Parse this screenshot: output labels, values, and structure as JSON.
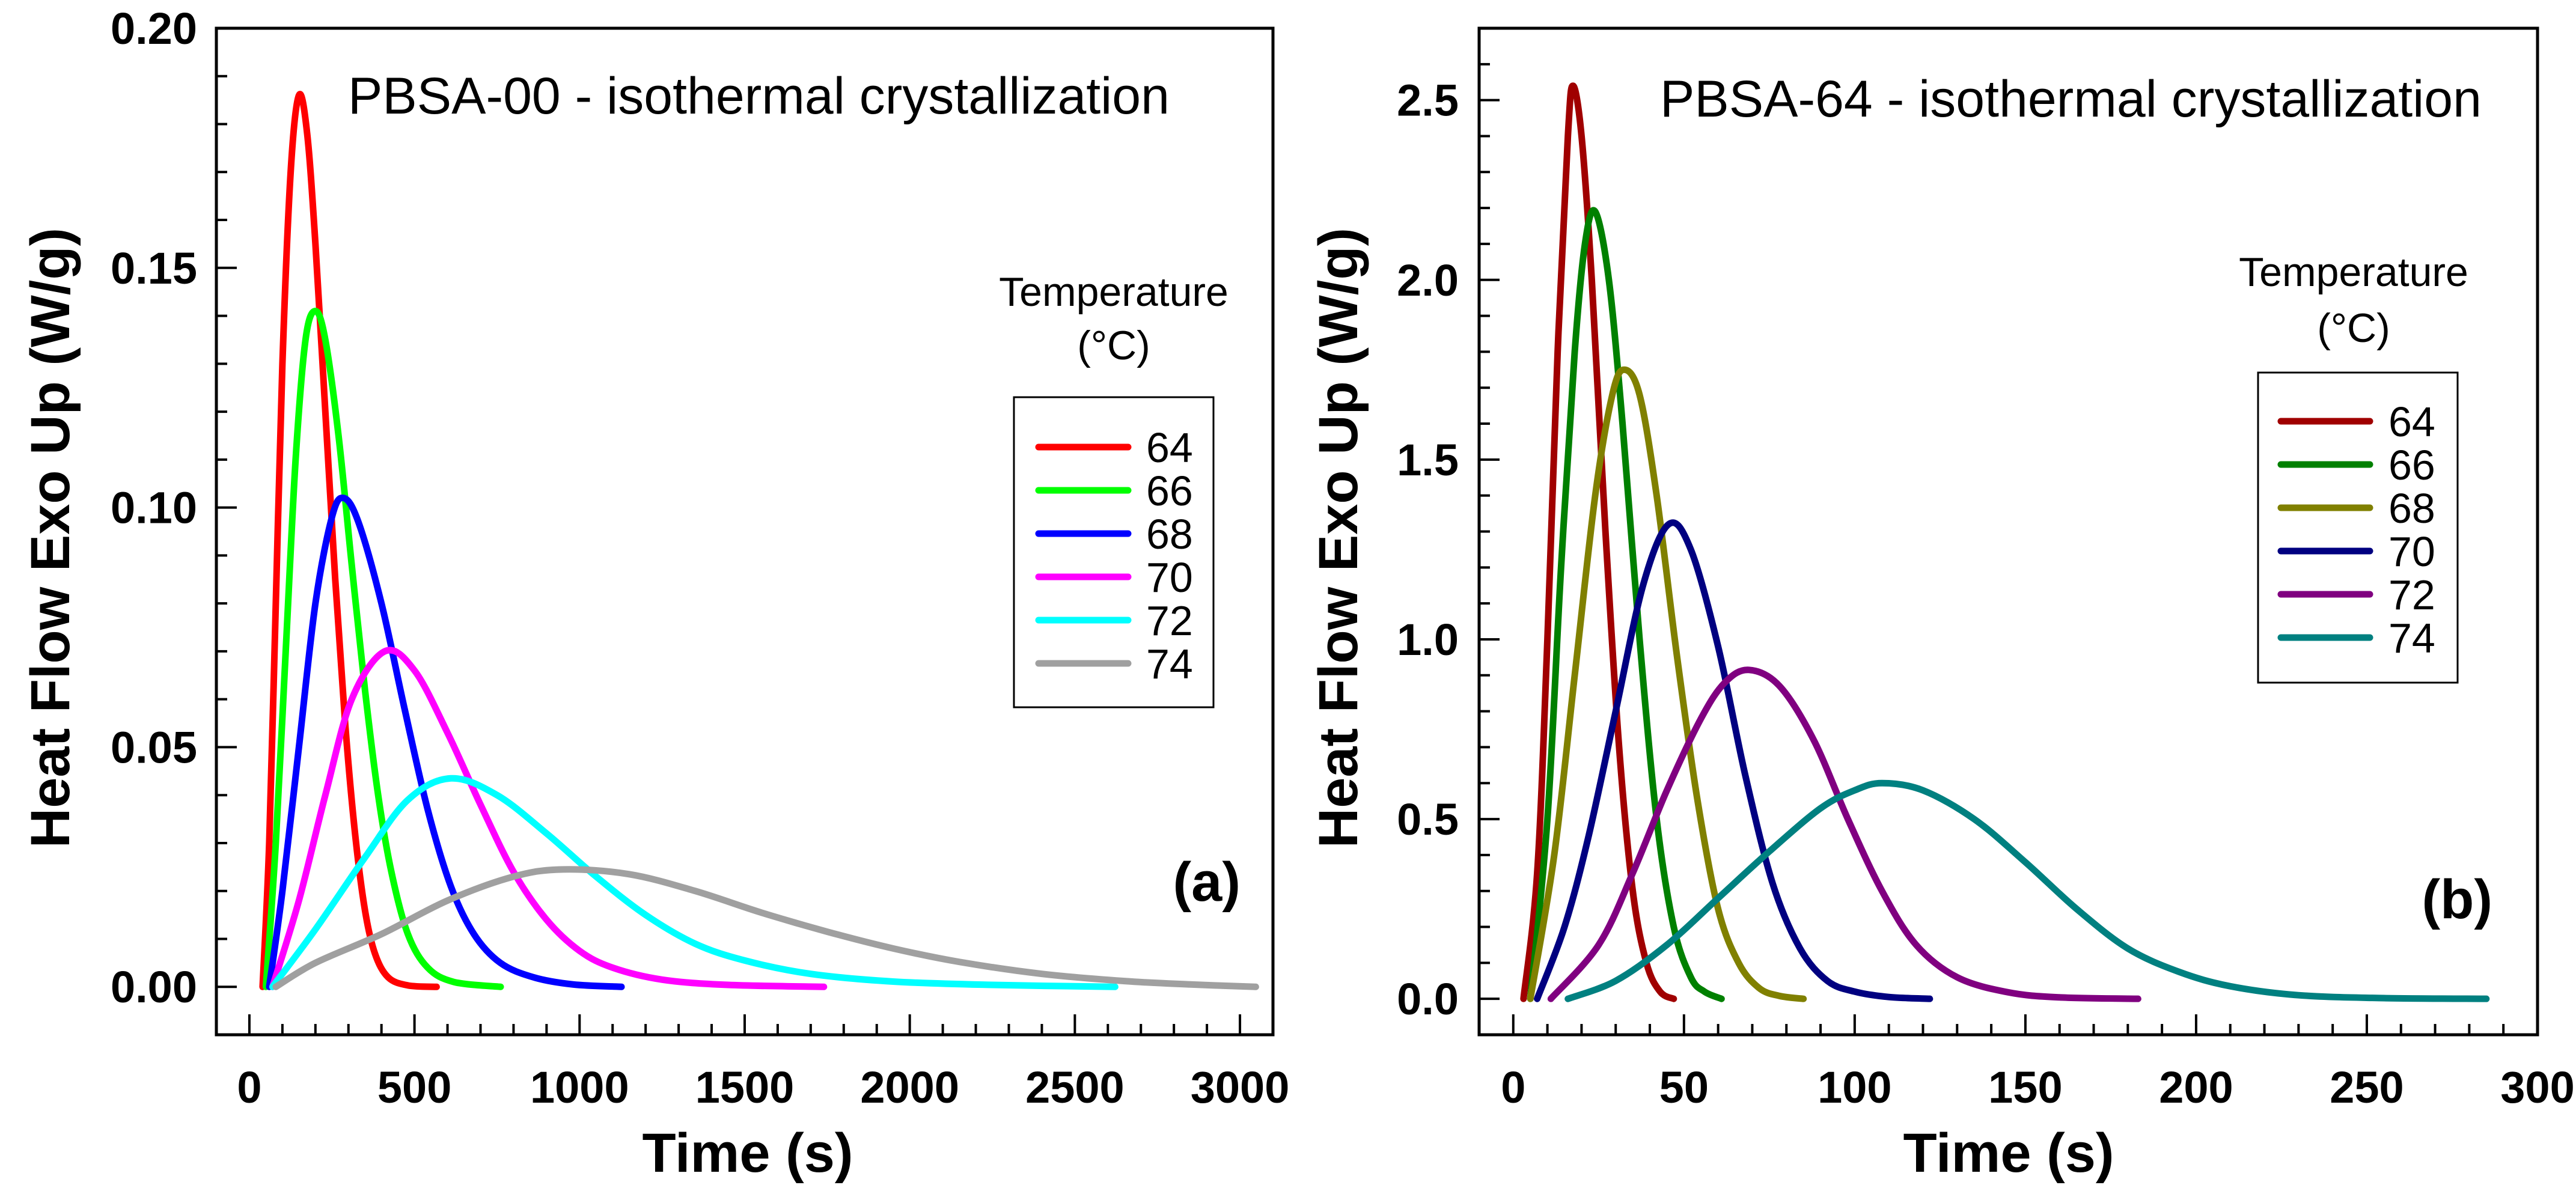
{
  "chart_data": [
    {
      "type": "line",
      "panel_label": "(a)",
      "title": "PBSA-00 - isothermal crystallization",
      "xlabel": "Time (s)",
      "ylabel": "Heat Flow Exo Up (W/g)",
      "xlim": [
        -100,
        3100
      ],
      "ylim": [
        -0.01,
        0.2
      ],
      "xticks": [
        0,
        500,
        1000,
        1500,
        2000,
        2500,
        3000
      ],
      "xtick_labels": [
        "0",
        "500",
        "1000",
        "1500",
        "2000",
        "2500",
        "3000"
      ],
      "x_minor_step": 100,
      "yticks": [
        0,
        0.05,
        0.1,
        0.15,
        0.2
      ],
      "ytick_labels": [
        "0.00",
        "0.05",
        "0.10",
        "0.15",
        "0.20"
      ],
      "y_minor_step": 0.01,
      "grid": false,
      "legend": {
        "title_line1": "Temperature",
        "title_line2": "(°C)",
        "placement": "right"
      },
      "series": [
        {
          "name": "64",
          "color": "#ff0000",
          "points": [
            [
              40,
              0
            ],
            [
              60,
              0.03
            ],
            [
              80,
              0.08
            ],
            [
              100,
              0.13
            ],
            [
              125,
              0.17
            ],
            [
              150,
              0.186
            ],
            [
              175,
              0.178
            ],
            [
              200,
              0.155
            ],
            [
              230,
              0.12
            ],
            [
              260,
              0.085
            ],
            [
              290,
              0.055
            ],
            [
              320,
              0.032
            ],
            [
              350,
              0.016
            ],
            [
              380,
              0.007
            ],
            [
              420,
              0.002
            ],
            [
              480,
              0.0003
            ],
            [
              567,
              0
            ]
          ]
        },
        {
          "name": "66",
          "color": "#00ff00",
          "points": [
            [
              50,
              0
            ],
            [
              80,
              0.03
            ],
            [
              110,
              0.07
            ],
            [
              140,
              0.11
            ],
            [
              170,
              0.135
            ],
            [
              200,
              0.141
            ],
            [
              230,
              0.135
            ],
            [
              270,
              0.115
            ],
            [
              310,
              0.088
            ],
            [
              350,
              0.062
            ],
            [
              390,
              0.04
            ],
            [
              430,
              0.024
            ],
            [
              480,
              0.011
            ],
            [
              540,
              0.004
            ],
            [
              620,
              0.001
            ],
            [
              761,
              0
            ]
          ]
        },
        {
          "name": "68",
          "color": "#0000ff",
          "points": [
            [
              60,
              0
            ],
            [
              100,
              0.02
            ],
            [
              150,
              0.05
            ],
            [
              200,
              0.08
            ],
            [
              250,
              0.098
            ],
            [
              285,
              0.102
            ],
            [
              330,
              0.097
            ],
            [
              400,
              0.08
            ],
            [
              470,
              0.058
            ],
            [
              540,
              0.037
            ],
            [
              610,
              0.021
            ],
            [
              680,
              0.011
            ],
            [
              760,
              0.005
            ],
            [
              860,
              0.002
            ],
            [
              980,
              0.0005
            ],
            [
              1127,
              0
            ]
          ]
        },
        {
          "name": "70",
          "color": "#ff00ff",
          "points": [
            [
              70,
              0
            ],
            [
              150,
              0.018
            ],
            [
              230,
              0.04
            ],
            [
              310,
              0.06
            ],
            [
              410,
              0.07
            ],
            [
              500,
              0.066
            ],
            [
              600,
              0.053
            ],
            [
              700,
              0.038
            ],
            [
              800,
              0.024
            ],
            [
              900,
              0.014
            ],
            [
              1000,
              0.0075
            ],
            [
              1100,
              0.004
            ],
            [
              1250,
              0.0015
            ],
            [
              1450,
              0.0004
            ],
            [
              1740,
              0
            ]
          ]
        },
        {
          "name": "72",
          "color": "#00ffff",
          "points": [
            [
              70,
              0
            ],
            [
              200,
              0.012
            ],
            [
              350,
              0.027
            ],
            [
              480,
              0.039
            ],
            [
              610,
              0.0435
            ],
            [
              750,
              0.04
            ],
            [
              900,
              0.032
            ],
            [
              1050,
              0.023
            ],
            [
              1200,
              0.015
            ],
            [
              1350,
              0.009
            ],
            [
              1500,
              0.0055
            ],
            [
              1700,
              0.0027
            ],
            [
              1950,
              0.0011
            ],
            [
              2250,
              0.0004
            ],
            [
              2622,
              0
            ]
          ]
        },
        {
          "name": "74",
          "color": "#a0a0a0",
          "points": [
            [
              80,
              0
            ],
            [
              200,
              0.005
            ],
            [
              400,
              0.011
            ],
            [
              600,
              0.018
            ],
            [
              800,
              0.023
            ],
            [
              950,
              0.0245
            ],
            [
              1150,
              0.0235
            ],
            [
              1350,
              0.02
            ],
            [
              1550,
              0.0155
            ],
            [
              1750,
              0.0115
            ],
            [
              1950,
              0.008
            ],
            [
              2150,
              0.0052
            ],
            [
              2400,
              0.0027
            ],
            [
              2650,
              0.0012
            ],
            [
              2850,
              0.0005
            ],
            [
              3048,
              0
            ]
          ]
        }
      ]
    },
    {
      "type": "line",
      "panel_label": "(b)",
      "title": "PBSA-64 - isothermal crystallization",
      "xlabel": "Time (s)",
      "ylabel": "Heat Flow Exo Up (W/g)",
      "xlim": [
        -10,
        300
      ],
      "ylim": [
        -0.1,
        2.7
      ],
      "xticks": [
        0,
        50,
        100,
        150,
        200,
        250,
        300
      ],
      "xtick_labels": [
        "0",
        "50",
        "100",
        "150",
        "200",
        "250",
        "300"
      ],
      "x_minor_step": 10,
      "yticks": [
        0,
        0.5,
        1.0,
        1.5,
        2.0,
        2.5
      ],
      "ytick_labels": [
        "0.0",
        "0.5",
        "1.0",
        "1.5",
        "2.0",
        "2.5"
      ],
      "y_minor_step": 0.1,
      "grid": false,
      "legend": {
        "title_line1": "Temperature",
        "title_line2": "(°C)",
        "placement": "right"
      },
      "series": [
        {
          "name": "64",
          "color": "#a00000",
          "points": [
            [
              3,
              0
            ],
            [
              7,
              0.35
            ],
            [
              10,
              1.0
            ],
            [
              13,
              1.8
            ],
            [
              16,
              2.4
            ],
            [
              17.5,
              2.54
            ],
            [
              20,
              2.4
            ],
            [
              23,
              2.0
            ],
            [
              27,
              1.3
            ],
            [
              31,
              0.7
            ],
            [
              35,
              0.3
            ],
            [
              39,
              0.1
            ],
            [
              43,
              0.02
            ],
            [
              47,
              0
            ]
          ]
        },
        {
          "name": "66",
          "color": "#008000",
          "points": [
            [
              5,
              0
            ],
            [
              10,
              0.5
            ],
            [
              14,
              1.2
            ],
            [
              18,
              1.8
            ],
            [
              21,
              2.1
            ],
            [
              24,
              2.19
            ],
            [
              28,
              2.0
            ],
            [
              32,
              1.6
            ],
            [
              37,
              1.0
            ],
            [
              42,
              0.5
            ],
            [
              47,
              0.2
            ],
            [
              52,
              0.06
            ],
            [
              56,
              0.02
            ],
            [
              61,
              0
            ]
          ]
        },
        {
          "name": "68",
          "color": "#808000",
          "points": [
            [
              5,
              0
            ],
            [
              12,
              0.4
            ],
            [
              18,
              0.9
            ],
            [
              24,
              1.4
            ],
            [
              29,
              1.68
            ],
            [
              32.5,
              1.75
            ],
            [
              37,
              1.68
            ],
            [
              42,
              1.4
            ],
            [
              48,
              0.95
            ],
            [
              54,
              0.55
            ],
            [
              60,
              0.25
            ],
            [
              66,
              0.1
            ],
            [
              72,
              0.03
            ],
            [
              78,
              0.008
            ],
            [
              85,
              0
            ]
          ]
        },
        {
          "name": "70",
          "color": "#000080",
          "points": [
            [
              7,
              0
            ],
            [
              15,
              0.2
            ],
            [
              22,
              0.45
            ],
            [
              30,
              0.8
            ],
            [
              38,
              1.15
            ],
            [
              45.5,
              1.32
            ],
            [
              52,
              1.25
            ],
            [
              60,
              0.98
            ],
            [
              68,
              0.62
            ],
            [
              76,
              0.32
            ],
            [
              84,
              0.14
            ],
            [
              92,
              0.05
            ],
            [
              100,
              0.02
            ],
            [
              110,
              0.005
            ],
            [
              122,
              0
            ]
          ]
        },
        {
          "name": "72",
          "color": "#800080",
          "points": [
            [
              11,
              0
            ],
            [
              25,
              0.15
            ],
            [
              35,
              0.35
            ],
            [
              45,
              0.58
            ],
            [
              55,
              0.78
            ],
            [
              62,
              0.88
            ],
            [
              69,
              0.915
            ],
            [
              78,
              0.87
            ],
            [
              88,
              0.72
            ],
            [
              98,
              0.5
            ],
            [
              108,
              0.3
            ],
            [
              118,
              0.15
            ],
            [
              130,
              0.06
            ],
            [
              145,
              0.018
            ],
            [
              160,
              0.004
            ],
            [
              183,
              0
            ]
          ]
        },
        {
          "name": "74",
          "color": "#008080",
          "points": [
            [
              16,
              0
            ],
            [
              30,
              0.05
            ],
            [
              45,
              0.15
            ],
            [
              60,
              0.28
            ],
            [
              75,
              0.41
            ],
            [
              90,
              0.53
            ],
            [
              100,
              0.58
            ],
            [
              108,
              0.6
            ],
            [
              120,
              0.58
            ],
            [
              135,
              0.5
            ],
            [
              150,
              0.38
            ],
            [
              165,
              0.25
            ],
            [
              180,
              0.14
            ],
            [
              195,
              0.075
            ],
            [
              210,
              0.035
            ],
            [
              230,
              0.01
            ],
            [
              255,
              0.002
            ],
            [
              285,
              0
            ]
          ]
        }
      ]
    }
  ]
}
